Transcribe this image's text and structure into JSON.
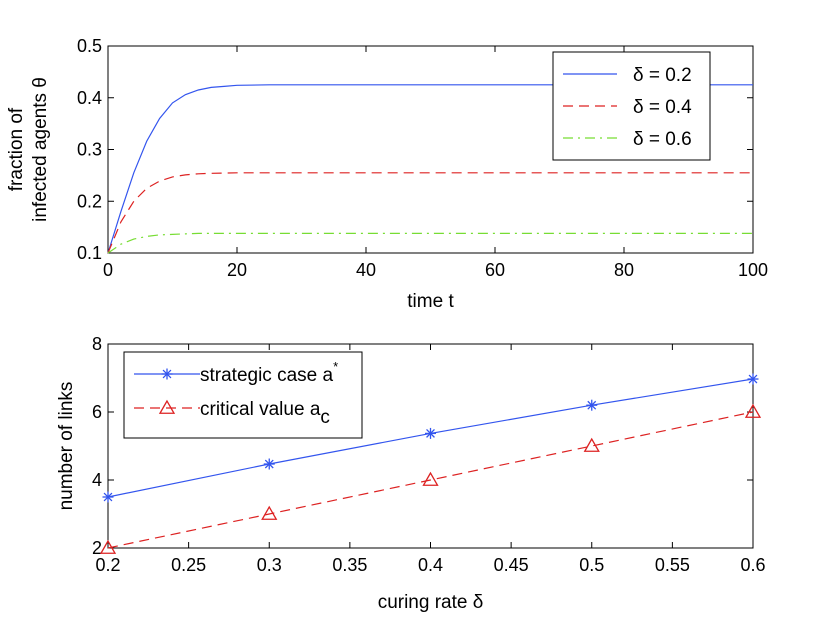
{
  "colors": {
    "blue": "#3355ee",
    "red": "#dd2222",
    "green": "#77dd33"
  },
  "chart_data": [
    {
      "type": "line",
      "xlabel": "time t",
      "ylabel_lines": [
        "fraction of",
        "infected agents θ"
      ],
      "xlim": [
        0,
        100
      ],
      "ylim": [
        0.1,
        0.5
      ],
      "xticks": [
        0,
        20,
        40,
        60,
        80,
        100
      ],
      "xtick_labels": [
        "0",
        "20",
        "40",
        "60",
        "80",
        "100"
      ],
      "yticks": [
        0.1,
        0.2,
        0.3,
        0.4,
        0.5
      ],
      "ytick_labels": [
        "0.1",
        "0.2",
        "0.3",
        "0.4",
        "0.5"
      ],
      "grid": false,
      "legend_position": "top-right",
      "series": [
        {
          "name": "δ = 0.2",
          "color": "blue",
          "style": "solid",
          "x": [
            0,
            2,
            4,
            6,
            8,
            10,
            12,
            14,
            16,
            18,
            20,
            25,
            30,
            40,
            60,
            80,
            100
          ],
          "values": [
            0.1,
            0.18,
            0.255,
            0.316,
            0.36,
            0.39,
            0.406,
            0.415,
            0.42,
            0.422,
            0.424,
            0.425,
            0.425,
            0.425,
            0.425,
            0.425,
            0.425
          ]
        },
        {
          "name": "δ = 0.4",
          "color": "red",
          "style": "dashed",
          "x": [
            0,
            2,
            4,
            6,
            8,
            10,
            12,
            14,
            16,
            20,
            25,
            30,
            40,
            60,
            80,
            100
          ],
          "values": [
            0.1,
            0.16,
            0.2,
            0.225,
            0.239,
            0.247,
            0.251,
            0.253,
            0.254,
            0.255,
            0.255,
            0.255,
            0.255,
            0.255,
            0.255,
            0.255
          ]
        },
        {
          "name": "δ = 0.6",
          "color": "green",
          "style": "dashdot",
          "x": [
            0,
            2,
            4,
            6,
            8,
            10,
            12,
            14,
            16,
            20,
            30,
            40,
            60,
            80,
            100
          ],
          "values": [
            0.1,
            0.117,
            0.127,
            0.132,
            0.135,
            0.136,
            0.137,
            0.138,
            0.138,
            0.138,
            0.138,
            0.138,
            0.138,
            0.138,
            0.138
          ]
        }
      ]
    },
    {
      "type": "line",
      "xlabel": "curing rate δ",
      "ylabel_lines": [
        "number of links"
      ],
      "xlim": [
        0.2,
        0.6
      ],
      "ylim": [
        2,
        8
      ],
      "xticks": [
        0.2,
        0.25,
        0.3,
        0.35,
        0.4,
        0.45,
        0.5,
        0.55,
        0.6
      ],
      "xtick_labels": [
        "0.2",
        "0.25",
        "0.3",
        "0.35",
        "0.4",
        "0.45",
        "0.5",
        "0.55",
        "0.6"
      ],
      "yticks": [
        2,
        4,
        6,
        8
      ],
      "ytick_labels": [
        "2",
        "4",
        "6",
        "8"
      ],
      "grid": false,
      "legend_position": "top-left",
      "series": [
        {
          "name": "strategic case a",
          "name_sup": "*",
          "color": "blue",
          "style": "solid",
          "marker": "star",
          "x": [
            0.2,
            0.3,
            0.4,
            0.5,
            0.6
          ],
          "values": [
            3.5,
            4.47,
            5.37,
            6.2,
            6.97
          ]
        },
        {
          "name": "critical value a",
          "name_sub": "c",
          "color": "red",
          "style": "dashed",
          "marker": "triangle",
          "x": [
            0.2,
            0.3,
            0.4,
            0.5,
            0.6
          ],
          "values": [
            2,
            3,
            4,
            5,
            6
          ]
        }
      ]
    }
  ]
}
